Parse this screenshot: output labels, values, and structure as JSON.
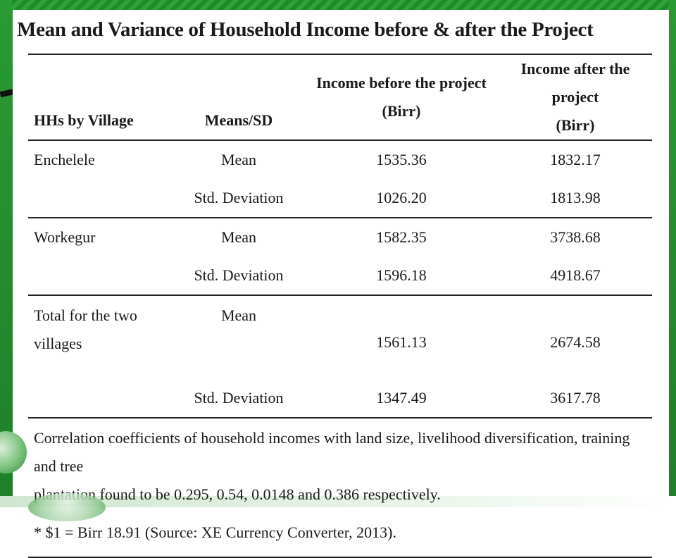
{
  "slide": {
    "title": "Mean and Variance of Household Income before & after the Project",
    "accent_color": "#1f8a2a"
  },
  "table": {
    "headers": {
      "village": "HHs by Village",
      "means": "Means/SD",
      "before_line1": "Income before the project",
      "before_line2": "(Birr)",
      "after_line1": "Income after the project",
      "after_line2": "(Birr)"
    },
    "groups": [
      {
        "village": "Enchelele",
        "rows": [
          {
            "stat": "Mean",
            "before": "1535.36",
            "after": "1832.17"
          },
          {
            "stat": "Std. Deviation",
            "before": "1026.20",
            "after": "1813.98"
          }
        ]
      },
      {
        "village": "Workegur",
        "rows": [
          {
            "stat": "Mean",
            "before": "1582.35",
            "after": "3738.68"
          },
          {
            "stat": "Std. Deviation",
            "before": "1596.18",
            "after": "4918.67"
          }
        ]
      },
      {
        "village_line1": "Total for the two",
        "village_line2": "villages",
        "rows": [
          {
            "stat": "Mean",
            "before": "1561.13",
            "after": "2674.58"
          },
          {
            "stat": "Std. Deviation",
            "before": "1347.49",
            "after": "3617.78"
          }
        ]
      }
    ],
    "note_line1": "Correlation coefficients of household incomes with land size, livelihood diversification, training and tree",
    "note_line2": "plantation found to be 0.295, 0.54, 0.0148 and 0.386 respectively.",
    "footnote": "* $1 = Birr 18.91 (Source: XE Currency Converter, 2013)."
  }
}
